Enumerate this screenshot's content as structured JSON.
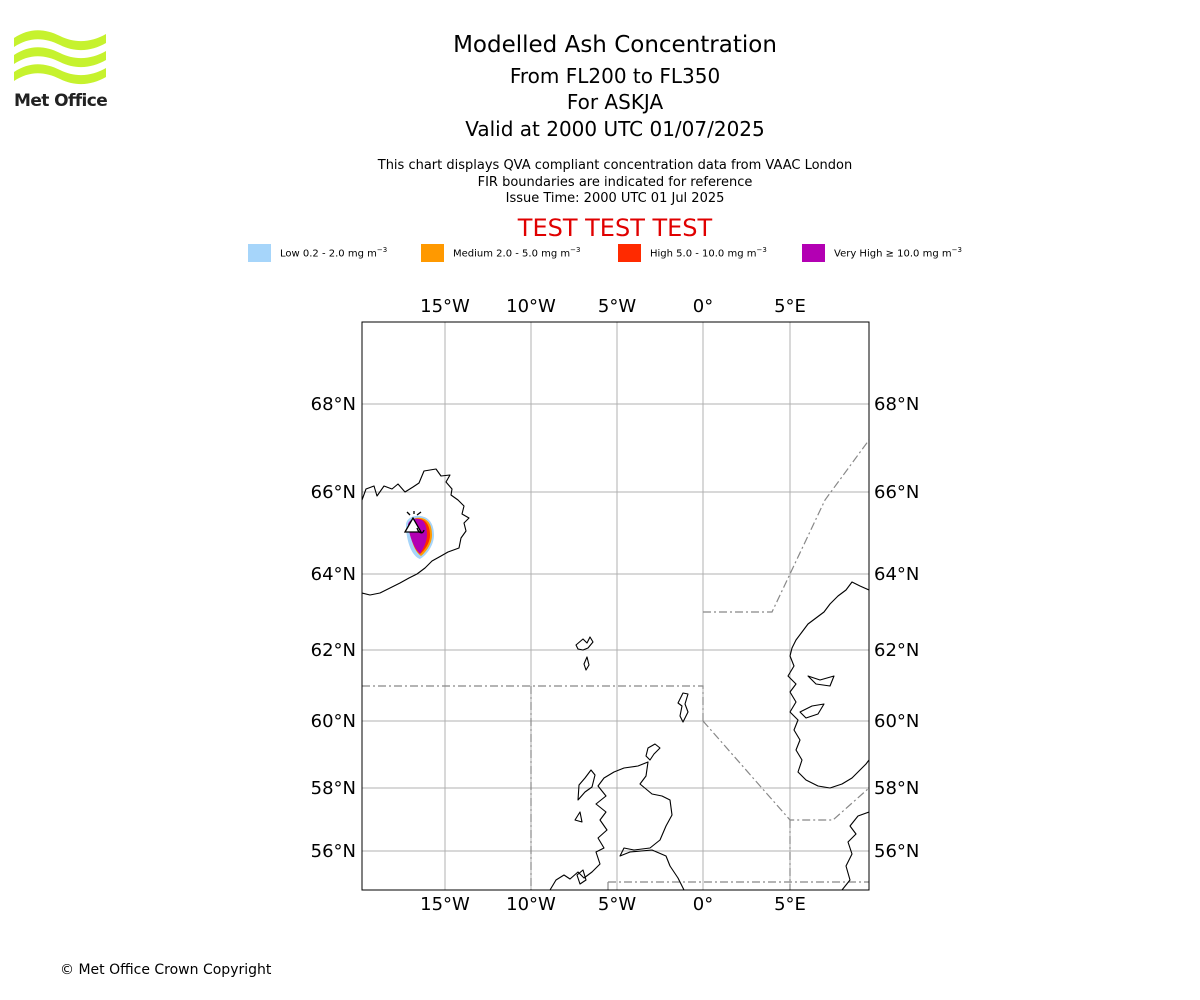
{
  "branding": {
    "logo_text": "Met Office"
  },
  "header": {
    "title": "Modelled Ash Concentration",
    "levels": "From FL200 to FL350",
    "volcano": "For ASKJA",
    "valid": "Valid at 2000 UTC 01/07/2025",
    "desc1": "This chart displays QVA compliant concentration data from VAAC London",
    "desc2": "FIR boundaries are indicated for reference",
    "issue": "Issue Time: 2000 UTC 01 Jul 2025",
    "test_banner": "TEST TEST TEST"
  },
  "legend": [
    {
      "label": "Low 0.2 - 2.0 mg m",
      "unit_exp": "−3",
      "color": "#a6d5fa"
    },
    {
      "label": "Medium 2.0 - 5.0 mg m",
      "unit_exp": "−3",
      "color": "#ff9900"
    },
    {
      "label": "High 5.0 - 10.0 mg m",
      "unit_exp": "−3",
      "color": "#ff2a00"
    },
    {
      "label": "Very High ≥ 10.0 mg m",
      "unit_exp": "−3",
      "color": "#b300b3"
    }
  ],
  "map": {
    "lon_ticks": [
      "15°W",
      "10°W",
      "5°W",
      "0°",
      "5°E"
    ],
    "lat_ticks": [
      "68°N",
      "66°N",
      "64°N",
      "62°N",
      "60°N",
      "58°N",
      "56°N"
    ],
    "gridlines": true,
    "fir_boundaries": "dashed grey",
    "volcano_marker": "ASKJA"
  },
  "footer": {
    "copyright": "© Met Office Crown Copyright"
  }
}
